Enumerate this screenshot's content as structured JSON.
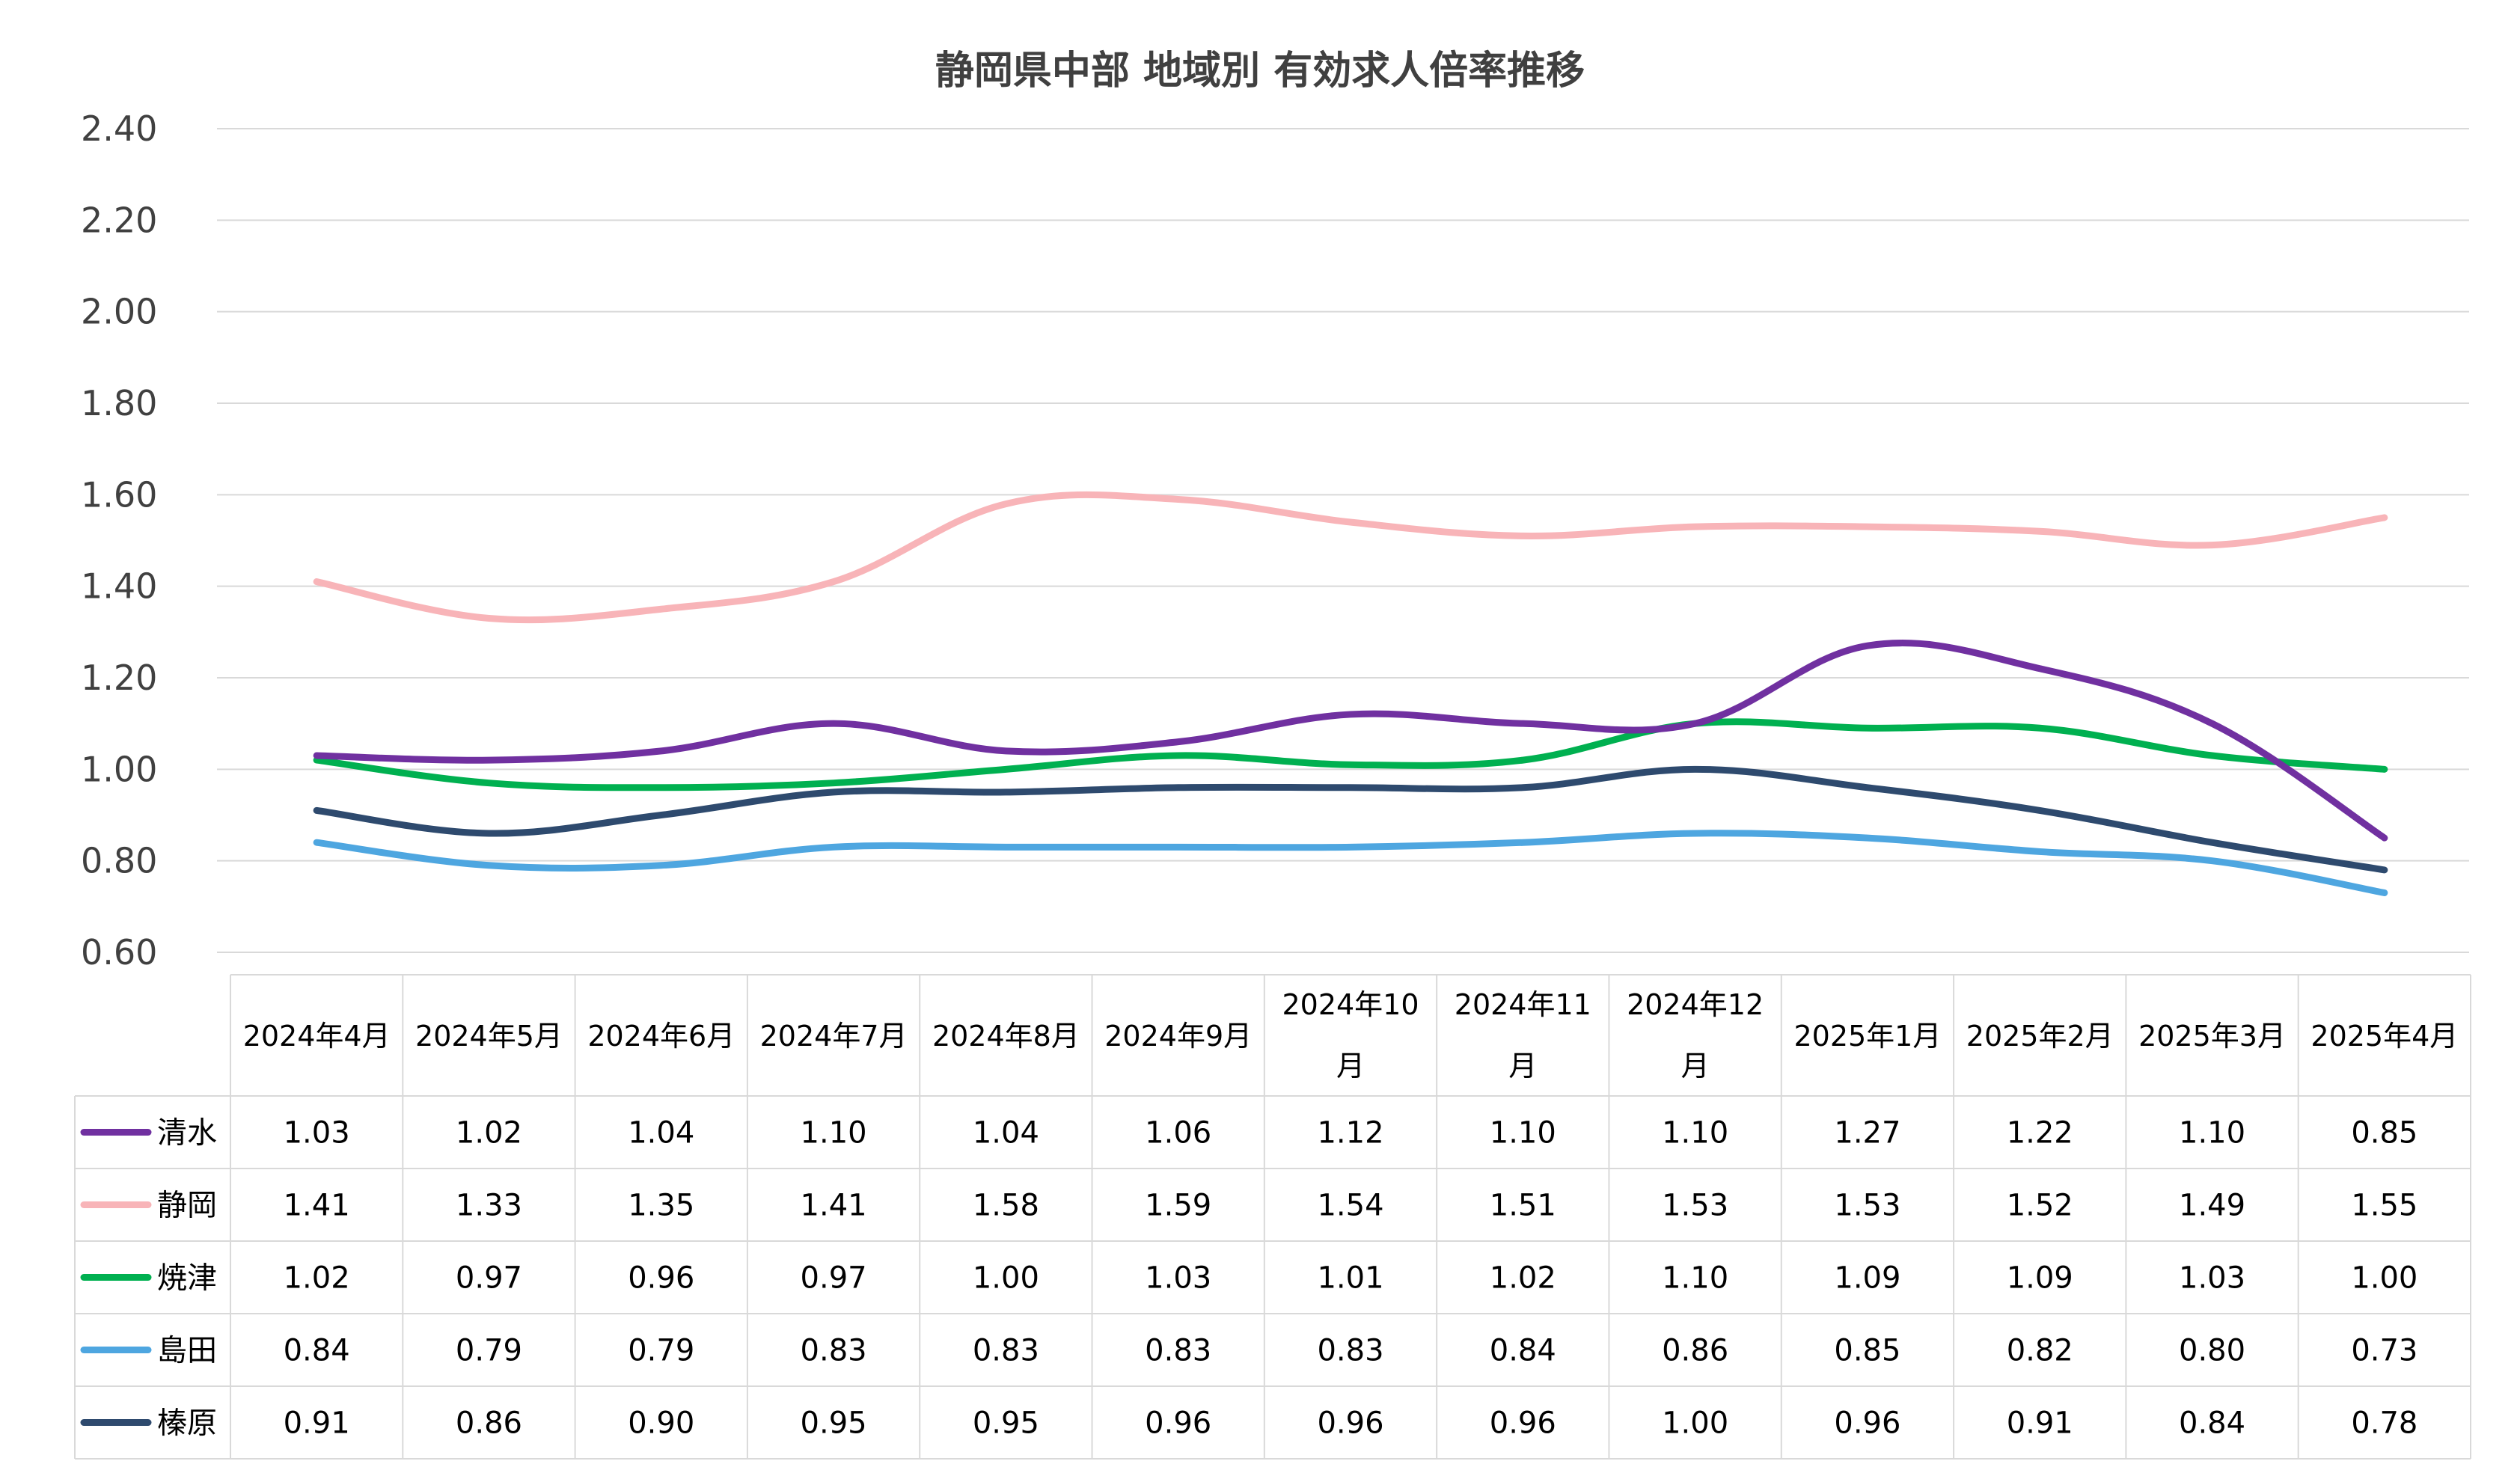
{
  "chart_data": {
    "type": "line",
    "title": "静岡県中部 地域別 有効求人倍率推移",
    "categories": [
      [
        "2024年4月"
      ],
      [
        "2024年5月"
      ],
      [
        "2024年6月"
      ],
      [
        "2024年7月"
      ],
      [
        "2024年8月"
      ],
      [
        "2024年9月"
      ],
      [
        "2024年10",
        "月"
      ],
      [
        "2024年11",
        "月"
      ],
      [
        "2024年12",
        "月"
      ],
      [
        "2025年1月"
      ],
      [
        "2025年2月"
      ],
      [
        "2025年3月"
      ],
      [
        "2025年4月"
      ]
    ],
    "ylim": [
      0.6,
      2.4
    ],
    "yticks": [
      "0.60",
      "0.80",
      "1.00",
      "1.20",
      "1.40",
      "1.60",
      "1.80",
      "2.00",
      "2.20",
      "2.40"
    ],
    "grid": true,
    "legend": "data-table",
    "series": [
      {
        "name": "清水",
        "color": "#7030a0",
        "values": [
          1.03,
          1.02,
          1.04,
          1.1,
          1.04,
          1.06,
          1.12,
          1.1,
          1.1,
          1.27,
          1.22,
          1.1,
          0.85
        ],
        "labels": [
          "1.03",
          "1.02",
          "1.04",
          "1.10",
          "1.04",
          "1.06",
          "1.12",
          "1.10",
          "1.10",
          "1.27",
          "1.22",
          "1.10",
          "0.85"
        ]
      },
      {
        "name": "静岡",
        "color": "#f8b4b8",
        "values": [
          1.41,
          1.33,
          1.35,
          1.41,
          1.58,
          1.59,
          1.54,
          1.51,
          1.53,
          1.53,
          1.52,
          1.49,
          1.55
        ],
        "labels": [
          "1.41",
          "1.33",
          "1.35",
          "1.41",
          "1.58",
          "1.59",
          "1.54",
          "1.51",
          "1.53",
          "1.53",
          "1.52",
          "1.49",
          "1.55"
        ]
      },
      {
        "name": "焼津",
        "color": "#00b050",
        "values": [
          1.02,
          0.97,
          0.96,
          0.97,
          1.0,
          1.03,
          1.01,
          1.02,
          1.1,
          1.09,
          1.09,
          1.03,
          1.0
        ],
        "labels": [
          "1.02",
          "0.97",
          "0.96",
          "0.97",
          "1.00",
          "1.03",
          "1.01",
          "1.02",
          "1.10",
          "1.09",
          "1.09",
          "1.03",
          "1.00"
        ]
      },
      {
        "name": "島田",
        "color": "#4ea6e0",
        "values": [
          0.84,
          0.79,
          0.79,
          0.83,
          0.83,
          0.83,
          0.83,
          0.84,
          0.86,
          0.85,
          0.82,
          0.8,
          0.73
        ],
        "labels": [
          "0.84",
          "0.79",
          "0.79",
          "0.83",
          "0.83",
          "0.83",
          "0.83",
          "0.84",
          "0.86",
          "0.85",
          "0.82",
          "0.80",
          "0.73"
        ]
      },
      {
        "name": "榛原",
        "color": "#2e4a6e",
        "values": [
          0.91,
          0.86,
          0.9,
          0.95,
          0.95,
          0.96,
          0.96,
          0.96,
          1.0,
          0.96,
          0.91,
          0.84,
          0.78
        ],
        "labels": [
          "0.91",
          "0.86",
          "0.90",
          "0.95",
          "0.95",
          "0.96",
          "0.96",
          "0.96",
          "1.00",
          "0.96",
          "0.91",
          "0.84",
          "0.78"
        ]
      }
    ]
  }
}
